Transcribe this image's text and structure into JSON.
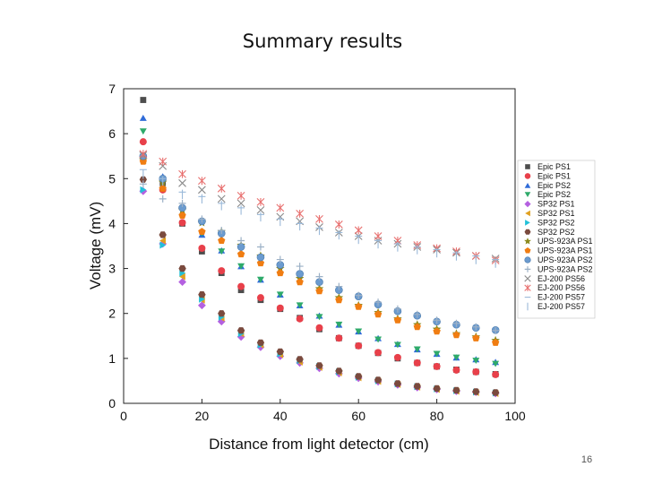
{
  "slide": {
    "title": "Summary results",
    "page_number": "16"
  },
  "chart_data": {
    "type": "scatter",
    "title": "",
    "xlabel": "Distance from light detector (cm)",
    "ylabel": "Voltage (mV)",
    "xlim": [
      0,
      100
    ],
    "ylim": [
      0,
      7
    ],
    "xticks": [
      0,
      20,
      40,
      60,
      80,
      100
    ],
    "yticks": [
      0,
      1,
      2,
      3,
      4,
      5,
      6,
      7
    ],
    "grid": false,
    "legend_position": "right",
    "x": [
      5,
      10,
      15,
      20,
      25,
      30,
      35,
      40,
      45,
      50,
      55,
      60,
      65,
      70,
      75,
      80,
      85,
      90,
      95
    ],
    "series": [
      {
        "name": "Epic PS1",
        "marker": "square",
        "color": "#4d4d4d",
        "values": [
          6.75,
          4.9,
          4.0,
          3.38,
          2.9,
          2.52,
          2.3,
          2.1,
          1.9,
          1.65,
          1.45,
          1.28,
          1.12,
          1.0,
          0.9,
          0.82,
          0.75,
          0.7,
          0.65
        ]
      },
      {
        "name": "Epic PS1",
        "marker": "circle",
        "color": "#e8404a",
        "values": [
          5.82,
          4.75,
          4.02,
          3.45,
          2.95,
          2.6,
          2.35,
          2.12,
          1.88,
          1.68,
          1.45,
          1.28,
          1.13,
          1.02,
          0.9,
          0.82,
          0.74,
          0.7,
          0.64
        ]
      },
      {
        "name": "Epic PS2",
        "marker": "triangle-up",
        "color": "#2f6bd8",
        "values": [
          6.35,
          5.05,
          4.25,
          3.75,
          3.4,
          3.05,
          2.75,
          2.42,
          2.18,
          1.95,
          1.75,
          1.6,
          1.45,
          1.32,
          1.2,
          1.1,
          1.02,
          0.98,
          0.92
        ]
      },
      {
        "name": "Epic PS2",
        "marker": "triangle-down",
        "color": "#2eaa6a",
        "values": [
          6.05,
          4.95,
          4.3,
          3.78,
          3.38,
          3.05,
          2.75,
          2.42,
          2.18,
          1.92,
          1.75,
          1.6,
          1.42,
          1.3,
          1.2,
          1.1,
          1.02,
          0.95,
          0.88
        ]
      },
      {
        "name": "SP32 PS1",
        "marker": "diamond",
        "color": "#b460e0",
        "values": [
          4.72,
          3.55,
          2.7,
          2.18,
          1.82,
          1.48,
          1.25,
          1.05,
          0.9,
          0.78,
          0.66,
          0.56,
          0.48,
          0.41,
          0.35,
          0.31,
          0.27,
          0.25,
          0.22
        ]
      },
      {
        "name": "SP32 PS1",
        "marker": "triangle-left",
        "color": "#e0a020",
        "values": [
          5.4,
          3.62,
          2.82,
          2.3,
          1.9,
          1.55,
          1.3,
          1.08,
          0.92,
          0.8,
          0.68,
          0.57,
          0.49,
          0.42,
          0.36,
          0.31,
          0.27,
          0.24,
          0.22
        ]
      },
      {
        "name": "SP32 PS2",
        "marker": "triangle-right",
        "color": "#22c1d8",
        "values": [
          4.75,
          3.52,
          2.9,
          2.32,
          1.92,
          1.55,
          1.3,
          1.1,
          0.95,
          0.82,
          0.7,
          0.58,
          0.5,
          0.43,
          0.37,
          0.32,
          0.28,
          0.25,
          0.23
        ]
      },
      {
        "name": "SP32 PS2",
        "marker": "hexagon",
        "color": "#7a4a3e",
        "values": [
          4.98,
          3.75,
          3.0,
          2.42,
          2.0,
          1.62,
          1.35,
          1.15,
          0.98,
          0.84,
          0.72,
          0.6,
          0.52,
          0.44,
          0.38,
          0.33,
          0.29,
          0.26,
          0.24
        ]
      },
      {
        "name": "UPS-923A PS1",
        "marker": "star",
        "color": "#8b8a1e",
        "values": [
          5.42,
          4.92,
          4.3,
          4.02,
          3.82,
          3.52,
          3.28,
          3.0,
          2.78,
          2.55,
          2.35,
          2.18,
          2.02,
          1.88,
          1.75,
          1.65,
          1.55,
          1.48,
          1.4
        ]
      },
      {
        "name": "UPS-923A PS1",
        "marker": "pentagon",
        "color": "#f07d12",
        "values": [
          5.38,
          4.78,
          4.18,
          3.82,
          3.62,
          3.32,
          3.12,
          2.9,
          2.7,
          2.5,
          2.3,
          2.15,
          1.98,
          1.85,
          1.7,
          1.6,
          1.52,
          1.45,
          1.35
        ]
      },
      {
        "name": "UPS-923A PS2",
        "marker": "sphere",
        "color": "#6b9bcf",
        "values": [
          5.5,
          5.0,
          4.35,
          4.05,
          3.78,
          3.48,
          3.25,
          3.08,
          2.88,
          2.7,
          2.52,
          2.38,
          2.2,
          2.05,
          1.95,
          1.82,
          1.75,
          1.68,
          1.63
        ]
      },
      {
        "name": "UPS-923A PS2",
        "marker": "plus",
        "color": "#9bb0c6",
        "values": [
          4.88,
          4.55,
          4.45,
          4.1,
          3.85,
          3.62,
          3.48,
          3.2,
          3.05,
          2.82,
          2.6,
          2.4,
          2.25,
          2.1,
          1.98,
          1.85,
          1.78,
          1.7,
          1.62
        ]
      },
      {
        "name": "EJ-200 PS56",
        "marker": "x",
        "color": "#8a8a8a",
        "values": [
          5.52,
          5.28,
          4.9,
          4.75,
          4.55,
          4.45,
          4.3,
          4.15,
          4.05,
          3.92,
          3.8,
          3.72,
          3.62,
          3.55,
          3.48,
          3.42,
          3.35,
          3.28,
          3.22
        ]
      },
      {
        "name": "EJ-200 PS56",
        "marker": "asterisk",
        "color": "#e8706f",
        "values": [
          5.55,
          5.38,
          5.1,
          4.95,
          4.78,
          4.62,
          4.48,
          4.35,
          4.22,
          4.1,
          3.98,
          3.85,
          3.72,
          3.62,
          3.52,
          3.45,
          3.38,
          3.28,
          3.18
        ]
      },
      {
        "name": "EJ-200 PS57",
        "marker": "dash",
        "color": "#9ab9d9",
        "values": [
          5.2,
          5.0,
          4.7,
          4.6,
          4.45,
          4.35,
          4.2,
          4.1,
          4.0,
          3.9,
          3.8,
          3.72,
          3.62,
          3.55,
          3.48,
          3.42,
          3.35,
          3.28,
          3.2
        ]
      },
      {
        "name": "EJ-200 PS57",
        "marker": "vbar",
        "color": "#9ab9d9",
        "values": [
          5.1,
          4.95,
          4.65,
          4.55,
          4.4,
          4.3,
          4.15,
          4.05,
          3.95,
          3.85,
          3.75,
          3.65,
          3.55,
          3.48,
          3.42,
          3.35,
          3.28,
          3.2,
          3.12
        ]
      }
    ]
  }
}
